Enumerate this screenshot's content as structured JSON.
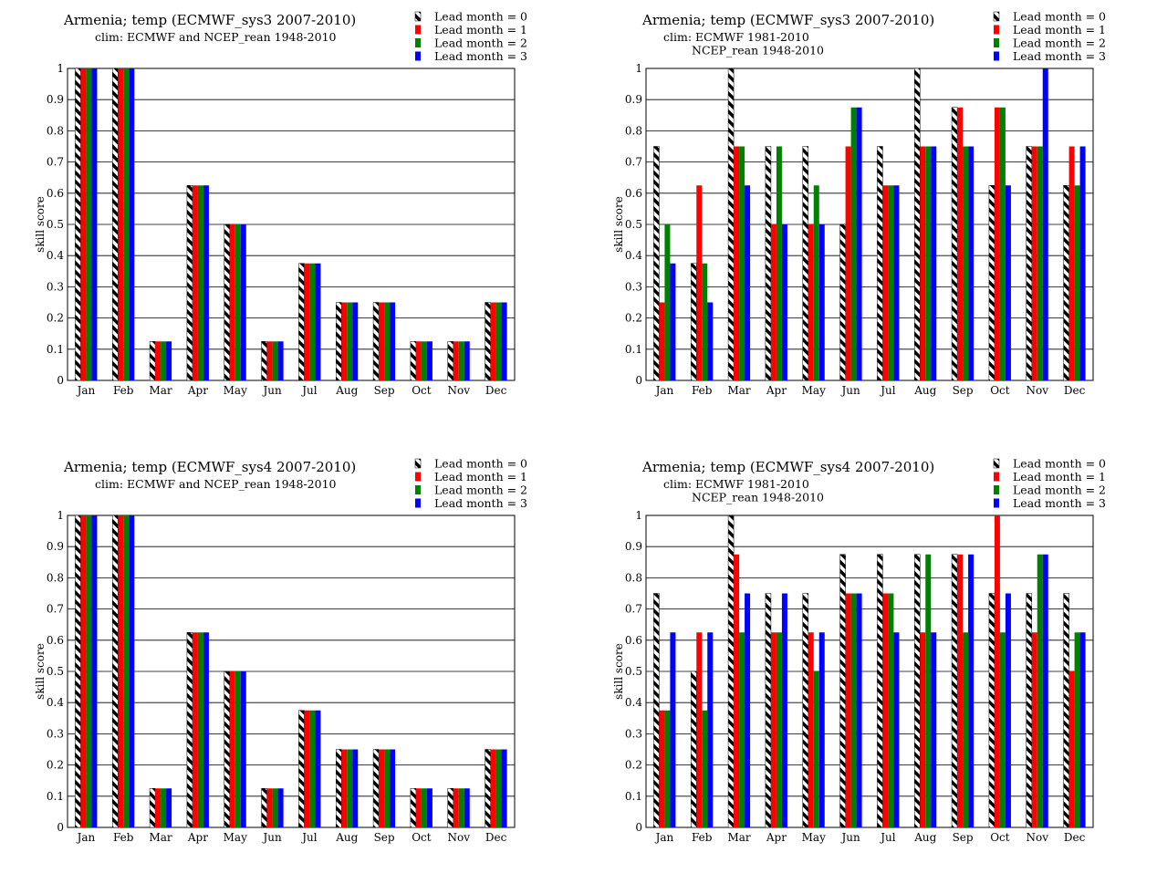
{
  "colors": {
    "lead0": "hatch-black-white",
    "lead1": "#ff0000",
    "lead2": "#008000",
    "lead3": "#0000ff",
    "grid": "#000000"
  },
  "chart_data": [
    {
      "type": "bar",
      "title": "Armenia; temp (ECMWF_sys3 2007-2010)",
      "subtitle_lines": [
        "clim: ECMWF and NCEP_rean 1948-2010"
      ],
      "ylabel": "skill  score",
      "xlabel": "",
      "ylim": [
        0,
        1
      ],
      "yticks": [
        "0",
        "0.1",
        "0.2",
        "0.3",
        "0.4",
        "0.5",
        "0.6",
        "0.7",
        "0.8",
        "0.9",
        "1"
      ],
      "grid": "horizontal",
      "legend_position": "top-right",
      "categories": [
        "Jan",
        "Feb",
        "Mar",
        "Apr",
        "May",
        "Jun",
        "Jul",
        "Aug",
        "Sep",
        "Oct",
        "Nov",
        "Dec"
      ],
      "series": [
        {
          "name": "Lead month = 0",
          "values": [
            1,
            1,
            0.125,
            0.625,
            0.5,
            0.125,
            0.375,
            0.25,
            0.25,
            0.125,
            0.125,
            0.25
          ]
        },
        {
          "name": "Lead month = 1",
          "values": [
            1,
            1,
            0.125,
            0.625,
            0.5,
            0.125,
            0.375,
            0.25,
            0.25,
            0.125,
            0.125,
            0.25
          ]
        },
        {
          "name": "Lead month = 2",
          "values": [
            1,
            1,
            0.125,
            0.625,
            0.5,
            0.125,
            0.375,
            0.25,
            0.25,
            0.125,
            0.125,
            0.25
          ]
        },
        {
          "name": "Lead month = 3",
          "values": [
            1,
            1,
            0.125,
            0.625,
            0.5,
            0.125,
            0.375,
            0.25,
            0.25,
            0.125,
            0.125,
            0.25
          ]
        }
      ]
    },
    {
      "type": "bar",
      "title": "Armenia; temp (ECMWF_sys3 2007-2010)",
      "subtitle_lines": [
        "clim: ECMWF 1981-2010",
        "NCEP_rean 1948-2010"
      ],
      "ylabel": "skill  score",
      "xlabel": "",
      "ylim": [
        0,
        1
      ],
      "yticks": [
        "0",
        "0.1",
        "0.2",
        "0.3",
        "0.4",
        "0.5",
        "0.6",
        "0.7",
        "0.8",
        "0.9",
        "1"
      ],
      "grid": "horizontal",
      "legend_position": "top-right",
      "categories": [
        "Jan",
        "Feb",
        "Mar",
        "Apr",
        "May",
        "Jun",
        "Jul",
        "Aug",
        "Sep",
        "Oct",
        "Nov",
        "Dec"
      ],
      "series": [
        {
          "name": "Lead month = 0",
          "values": [
            0.75,
            0.375,
            1,
            0.75,
            0.75,
            0.5,
            0.75,
            1,
            0.875,
            0.625,
            0.75,
            0.625
          ]
        },
        {
          "name": "Lead month = 1",
          "values": [
            0.25,
            0.625,
            0.75,
            0.5,
            0.5,
            0.75,
            0.625,
            0.75,
            0.875,
            0.875,
            0.75,
            0.75
          ]
        },
        {
          "name": "Lead month = 2",
          "values": [
            0.5,
            0.375,
            0.75,
            0.75,
            0.625,
            0.875,
            0.625,
            0.75,
            0.75,
            0.875,
            0.75,
            0.625
          ]
        },
        {
          "name": "Lead month = 3",
          "values": [
            0.375,
            0.25,
            0.625,
            0.5,
            0.5,
            0.875,
            0.625,
            0.75,
            0.75,
            0.625,
            1,
            0.75
          ]
        }
      ]
    },
    {
      "type": "bar",
      "title": "Armenia; temp (ECMWF_sys4 2007-2010)",
      "subtitle_lines": [
        "clim: ECMWF and NCEP_rean 1948-2010"
      ],
      "ylabel": "skill  score",
      "xlabel": "",
      "ylim": [
        0,
        1
      ],
      "yticks": [
        "0",
        "0.1",
        "0.2",
        "0.3",
        "0.4",
        "0.5",
        "0.6",
        "0.7",
        "0.8",
        "0.9",
        "1"
      ],
      "grid": "horizontal",
      "legend_position": "top-right",
      "categories": [
        "Jan",
        "Feb",
        "Mar",
        "Apr",
        "May",
        "Jun",
        "Jul",
        "Aug",
        "Sep",
        "Oct",
        "Nov",
        "Dec"
      ],
      "series": [
        {
          "name": "Lead month = 0",
          "values": [
            1,
            1,
            0.125,
            0.625,
            0.5,
            0.125,
            0.375,
            0.25,
            0.25,
            0.125,
            0.125,
            0.25
          ]
        },
        {
          "name": "Lead month = 1",
          "values": [
            1,
            1,
            0.125,
            0.625,
            0.5,
            0.125,
            0.375,
            0.25,
            0.25,
            0.125,
            0.125,
            0.25
          ]
        },
        {
          "name": "Lead month = 2",
          "values": [
            1,
            1,
            0.125,
            0.625,
            0.5,
            0.125,
            0.375,
            0.25,
            0.25,
            0.125,
            0.125,
            0.25
          ]
        },
        {
          "name": "Lead month = 3",
          "values": [
            1,
            1,
            0.125,
            0.625,
            0.5,
            0.125,
            0.375,
            0.25,
            0.25,
            0.125,
            0.125,
            0.25
          ]
        }
      ]
    },
    {
      "type": "bar",
      "title": "Armenia; temp (ECMWF_sys4 2007-2010)",
      "subtitle_lines": [
        "clim: ECMWF 1981-2010",
        "NCEP_rean 1948-2010"
      ],
      "ylabel": "skill  score",
      "xlabel": "",
      "ylim": [
        0,
        1
      ],
      "yticks": [
        "0",
        "0.1",
        "0.2",
        "0.3",
        "0.4",
        "0.5",
        "0.6",
        "0.7",
        "0.8",
        "0.9",
        "1"
      ],
      "grid": "horizontal",
      "legend_position": "top-right",
      "categories": [
        "Jan",
        "Feb",
        "Mar",
        "Apr",
        "May",
        "Jun",
        "Jul",
        "Aug",
        "Sep",
        "Oct",
        "Nov",
        "Dec"
      ],
      "series": [
        {
          "name": "Lead month = 0",
          "values": [
            0.75,
            0.5,
            1,
            0.75,
            0.75,
            0.875,
            0.875,
            0.875,
            0.875,
            0.75,
            0.75,
            0.75
          ]
        },
        {
          "name": "Lead month = 1",
          "values": [
            0.375,
            0.625,
            0.875,
            0.625,
            0.625,
            0.75,
            0.75,
            0.625,
            0.875,
            1,
            0.625,
            0.5
          ]
        },
        {
          "name": "Lead month = 2",
          "values": [
            0.375,
            0.375,
            0.625,
            0.625,
            0.5,
            0.75,
            0.75,
            0.875,
            0.625,
            0.625,
            0.875,
            0.625
          ]
        },
        {
          "name": "Lead month = 3",
          "values": [
            0.625,
            0.625,
            0.75,
            0.75,
            0.625,
            0.75,
            0.625,
            0.625,
            0.875,
            0.75,
            0.875,
            0.625
          ]
        }
      ]
    }
  ]
}
